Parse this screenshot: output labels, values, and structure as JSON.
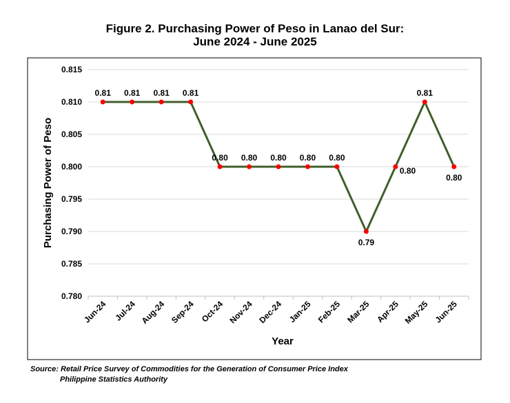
{
  "title_line1": "Figure 2. Purchasing Power of Peso in Lanao del Sur:",
  "title_line2": "June 2024 - June 2025",
  "source_line1": "Source: Retail Price Survey of Commodities for the Generation of Consumer Price Index",
  "source_line2": "Philippine Statistics Authority",
  "colors": {
    "line": "#3f5f2a",
    "marker": "#ff0000",
    "grid": "#d9d9d9",
    "frame": "#000000"
  },
  "chart_data": {
    "type": "line",
    "xlabel": "Year",
    "ylabel": "Purchasing Power of Peso",
    "categories": [
      "Jun-24",
      "Jul-24",
      "Aug-24",
      "Sep-24",
      "Oct-24",
      "Nov-24",
      "Dec-24",
      "Jan-25",
      "Feb-25",
      "Mar-25",
      "Apr-25",
      "May-25",
      "Jun-25"
    ],
    "values": [
      0.81,
      0.81,
      0.81,
      0.81,
      0.8,
      0.8,
      0.8,
      0.8,
      0.8,
      0.79,
      0.8,
      0.81,
      0.8
    ],
    "data_labels": [
      "0.81",
      "0.81",
      "0.81",
      "0.81",
      "0.80",
      "0.80",
      "0.80",
      "0.80",
      "0.80",
      "0.79",
      "0.80",
      "0.81",
      "0.80"
    ],
    "ylim": [
      0.78,
      0.815
    ],
    "yticks": [
      0.78,
      0.785,
      0.79,
      0.795,
      0.8,
      0.805,
      0.81,
      0.815
    ],
    "ytick_labels": [
      "0.780",
      "0.785",
      "0.790",
      "0.795",
      "0.800",
      "0.805",
      "0.810",
      "0.815"
    ],
    "grid": true,
    "legend": "none"
  }
}
